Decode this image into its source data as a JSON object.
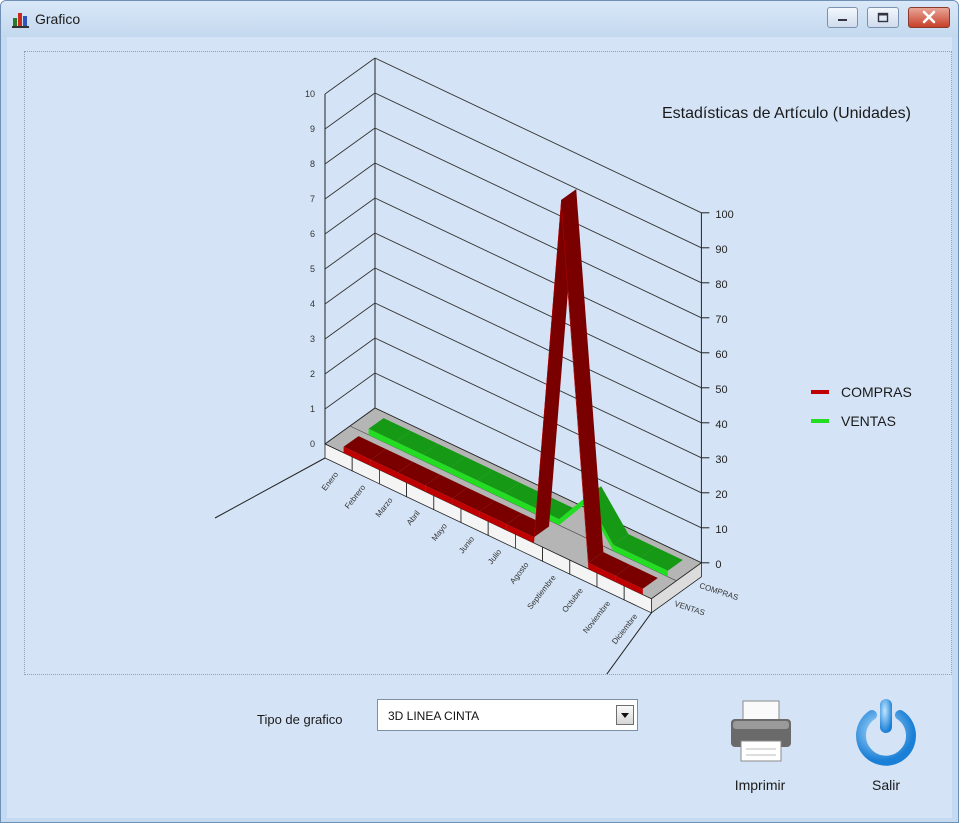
{
  "window": {
    "title": "Grafico"
  },
  "controls": {
    "tipo_label": "Tipo de grafico",
    "tipo_value": "3D LINEA CINTA",
    "print_label": "Imprimir",
    "exit_label": "Salir"
  },
  "chart_data": {
    "type": "line",
    "title": "Estadísticas de Artículo (Unidades)",
    "categories": [
      "Enero",
      "Febrero",
      "Marzo",
      "Abril",
      "Mayo",
      "Junio",
      "Julio",
      "Agosto",
      "Septiembre",
      "Octubre",
      "Noviembre",
      "Diciembre"
    ],
    "series": [
      {
        "name": "COMPRAS",
        "color": "#c00000",
        "values": [
          0,
          0,
          0,
          0,
          0,
          0,
          0,
          0,
          100,
          0,
          0,
          0
        ]
      },
      {
        "name": "VENTAS",
        "color": "#22dd22",
        "values": [
          0,
          0,
          0,
          0,
          0,
          0,
          0,
          0,
          10,
          0,
          0,
          0
        ]
      }
    ],
    "depth_labels": [
      "VENTAS",
      "COMPRAS"
    ],
    "ylim": [
      0,
      100
    ],
    "yticks": [
      0,
      10,
      20,
      30,
      40,
      50,
      60,
      70,
      80,
      90,
      100
    ],
    "left_ticks": [
      "0",
      "1",
      "2",
      "3",
      "4",
      "5",
      "6",
      "7",
      "8",
      "9",
      "10"
    ],
    "legend": "right",
    "grid": true
  }
}
